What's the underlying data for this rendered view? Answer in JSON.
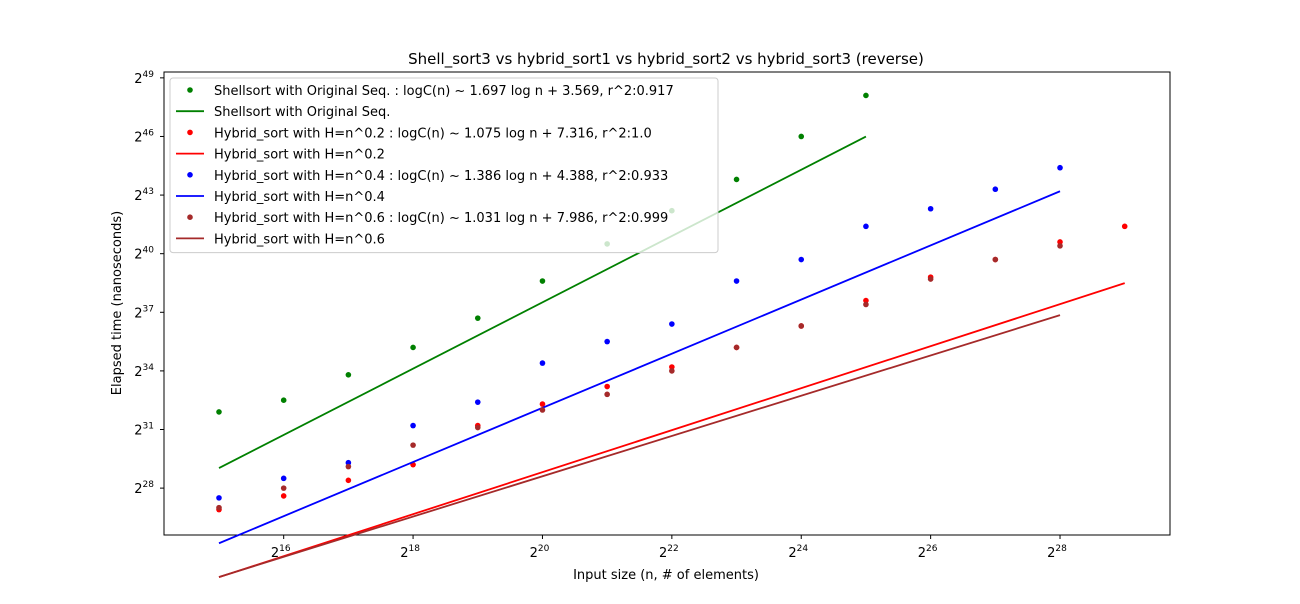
{
  "chart_data": {
    "type": "scatter",
    "title": "Shell_sort3 vs  hybrid_sort1 vs hybrid_sort2 vs hybrid_sort3  (reverse)",
    "xlabel": "Input size (n, # of elements)",
    "ylabel": "Elapsed time (nanoseconds)",
    "x_scale": "log2",
    "y_scale": "log2",
    "xlim_log2": [
      14.15,
      29.7
    ],
    "ylim_log2": [
      25.6,
      49.3
    ],
    "x_ticks": [
      {
        "base": "2",
        "exp": "16",
        "value": 16
      },
      {
        "base": "2",
        "exp": "18",
        "value": 18
      },
      {
        "base": "2",
        "exp": "20",
        "value": 20
      },
      {
        "base": "2",
        "exp": "22",
        "value": 22
      },
      {
        "base": "2",
        "exp": "24",
        "value": 24
      },
      {
        "base": "2",
        "exp": "26",
        "value": 26
      },
      {
        "base": "2",
        "exp": "28",
        "value": 28
      }
    ],
    "y_ticks": [
      {
        "base": "2",
        "exp": "28",
        "value": 28
      },
      {
        "base": "2",
        "exp": "31",
        "value": 31
      },
      {
        "base": "2",
        "exp": "34",
        "value": 34
      },
      {
        "base": "2",
        "exp": "37",
        "value": 37
      },
      {
        "base": "2",
        "exp": "40",
        "value": 40
      },
      {
        "base": "2",
        "exp": "43",
        "value": 43
      },
      {
        "base": "2",
        "exp": "46",
        "value": 46
      },
      {
        "base": "2",
        "exp": "49",
        "value": 49
      }
    ],
    "grid": false,
    "legend_position": "top-left",
    "series": [
      {
        "key": "shellsort",
        "color": "#008000",
        "scatter_name": "Shellsort with Original Seq. : logC(n) ~ 1.697 log n  + 3.569, r^2:0.917",
        "fit_name": "Shellsort with Original Seq.",
        "log2_x": [
          15,
          16,
          17,
          18,
          19,
          20,
          21,
          22,
          23,
          24,
          25
        ],
        "log2_y": [
          31.9,
          32.5,
          33.8,
          35.2,
          36.7,
          38.6,
          40.5,
          42.2,
          43.8,
          46.0,
          48.1
        ],
        "fit": {
          "slope": 1.697,
          "intercept": 3.569,
          "x_range": [
            15,
            25
          ]
        }
      },
      {
        "key": "hybrid_02",
        "color": "#ff0000",
        "scatter_name": "Hybrid_sort with H=n^0.2 : logC(n) ~ 1.075 log n  + 7.316, r^2:1.0",
        "fit_name": "Hybrid_sort with H=n^0.2",
        "log2_x": [
          15,
          16,
          17,
          18,
          19,
          20,
          21,
          22,
          23,
          24,
          25,
          26,
          27,
          28,
          29
        ],
        "log2_y": [
          26.9,
          27.6,
          28.4,
          29.2,
          31.2,
          32.3,
          33.2,
          34.2,
          35.2,
          36.3,
          37.6,
          38.8,
          39.7,
          40.6,
          41.4
        ],
        "fit": {
          "slope": 1.075,
          "intercept": 7.316,
          "x_range": [
            15,
            29
          ]
        }
      },
      {
        "key": "hybrid_04",
        "color": "#0000ff",
        "scatter_name": "Hybrid_sort with H=n^0.4 : logC(n) ~ 1.386 log n  + 4.388, r^2:0.933",
        "fit_name": "Hybrid_sort with H=n^0.4",
        "log2_x": [
          15,
          16,
          17,
          18,
          19,
          20,
          21,
          22,
          23,
          24,
          25,
          26,
          27,
          28
        ],
        "log2_y": [
          27.5,
          28.5,
          29.3,
          31.2,
          32.4,
          34.4,
          35.5,
          36.4,
          38.6,
          39.7,
          41.4,
          42.3,
          43.3,
          44.4
        ],
        "fit": {
          "slope": 1.386,
          "intercept": 4.388,
          "x_range": [
            15,
            28
          ]
        }
      },
      {
        "key": "hybrid_06",
        "color": "#a52a2a",
        "scatter_name": "Hybrid_sort with H=n^0.6 : logC(n) ~ 1.031 log n  + 7.986, r^2:0.999",
        "fit_name": "Hybrid_sort with H=n^0.6",
        "log2_x": [
          15,
          16,
          17,
          18,
          19,
          20,
          21,
          22,
          23,
          24,
          25,
          26,
          27,
          28
        ],
        "log2_y": [
          27.0,
          28.0,
          29.1,
          30.2,
          31.1,
          32.0,
          32.8,
          34.0,
          35.2,
          36.3,
          37.4,
          38.7,
          39.7,
          40.4
        ],
        "fit": {
          "slope": 1.031,
          "intercept": 7.986,
          "x_range": [
            15,
            28
          ]
        }
      }
    ]
  }
}
